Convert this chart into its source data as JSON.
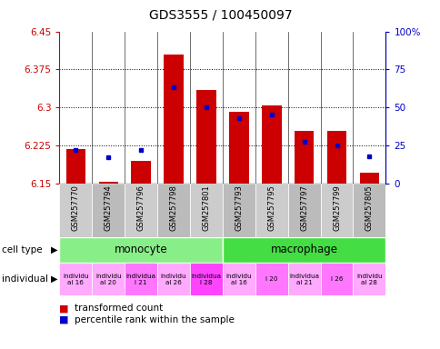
{
  "title": "GDS3555 / 100450097",
  "samples": [
    "GSM257770",
    "GSM257794",
    "GSM257796",
    "GSM257798",
    "GSM257801",
    "GSM257793",
    "GSM257795",
    "GSM257797",
    "GSM257799",
    "GSM257805"
  ],
  "transformed_count": [
    6.218,
    6.152,
    6.195,
    6.405,
    6.335,
    6.292,
    6.303,
    6.253,
    6.253,
    6.17
  ],
  "percentile_rank": [
    22,
    17,
    22,
    63,
    50,
    43,
    45,
    27,
    25,
    18
  ],
  "ylim_left": [
    6.15,
    6.45
  ],
  "ylim_right": [
    0,
    100
  ],
  "yticks_left": [
    6.15,
    6.225,
    6.3,
    6.375,
    6.45
  ],
  "yticks_right": [
    0,
    25,
    50,
    75,
    100
  ],
  "ytick_labels_left": [
    "6.15",
    "6.225",
    "6.3",
    "6.375",
    "6.45"
  ],
  "ytick_labels_right": [
    "0",
    "25",
    "50",
    "75",
    "100%"
  ],
  "bar_color": "#cc0000",
  "dot_color": "#0000cc",
  "baseline": 6.15,
  "cell_type_groups": [
    {
      "label": "monocyte",
      "start": 0,
      "end": 5,
      "color": "#88ee88"
    },
    {
      "label": "macrophage",
      "start": 5,
      "end": 10,
      "color": "#44dd44"
    }
  ],
  "individual_labels": [
    "individu\nal 16",
    "individu\nal 20",
    "individua\nl 21",
    "individu\nal 26",
    "individua\nl 28",
    "individu\nal 16",
    "l 20",
    "individua\nal 21",
    "l 26",
    "individu\nal 28"
  ],
  "individual_colors": [
    "#ffaaff",
    "#ffaaff",
    "#ff77ff",
    "#ffaaff",
    "#ff44ff",
    "#ffaaff",
    "#ff77ff",
    "#ffaaff",
    "#ff77ff",
    "#ffaaff"
  ],
  "bg_color": "#ffffff",
  "left_axis_color": "#cc0000",
  "right_axis_color": "#0000cc",
  "sample_bg_odd": "#cccccc",
  "sample_bg_even": "#bbbbbb"
}
